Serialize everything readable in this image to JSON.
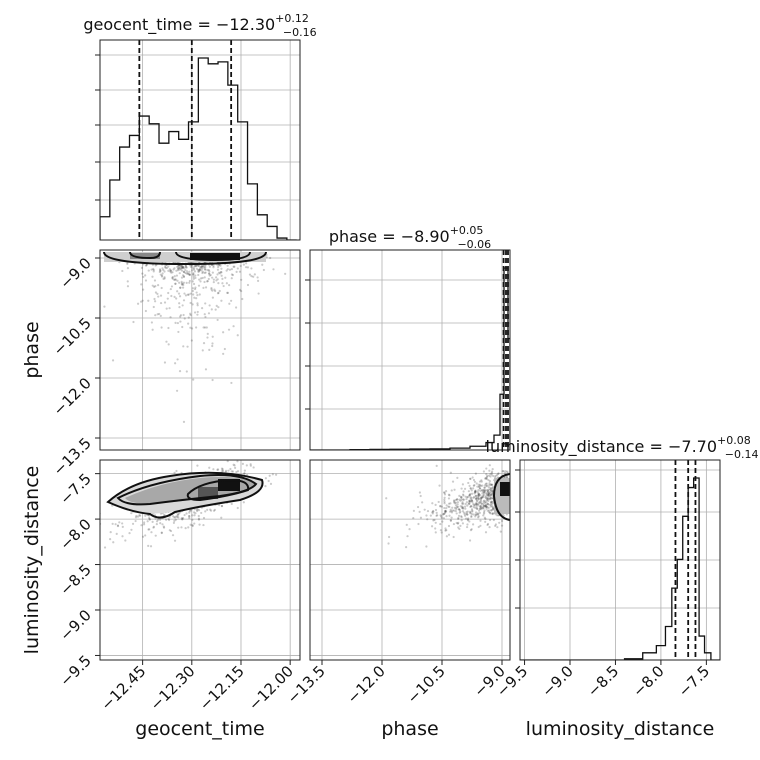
{
  "chart_data": {
    "type": "corner",
    "parameters": [
      "geocent_time",
      "phase",
      "luminosity_distance"
    ],
    "axis_labels": {
      "geocent_time": "geocent_time",
      "phase": "phase",
      "luminosity_distance": "luminosity_distance"
    },
    "ranges": {
      "geocent_time": [
        -12.58,
        -11.97
      ],
      "phase": [
        -13.8,
        -8.8
      ],
      "luminosity_distance": [
        -9.55,
        -7.35
      ]
    },
    "ticks": {
      "geocent_time": [
        "−12.45",
        "−12.30",
        "−12.15",
        "−12.00"
      ],
      "geocent_time_values": [
        -12.45,
        -12.3,
        -12.15,
        -12.0
      ],
      "phase": [
        "−13.5",
        "−12.0",
        "−10.5",
        "−9.0"
      ],
      "phase_values": [
        -13.5,
        -12.0,
        -10.5,
        -9.0
      ],
      "luminosity_distance": [
        "−9.5",
        "−9.0",
        "−8.5",
        "−8.0",
        "−7.5"
      ],
      "luminosity_distance_values": [
        -9.5,
        -9.0,
        -8.5,
        -8.0,
        -7.5
      ]
    },
    "titles": {
      "geocent_time": {
        "main": "geocent_time = −12.30",
        "sup": "+0.12",
        "sub": "−0.16"
      },
      "phase": {
        "main": "phase = −8.90",
        "sup": "+0.05",
        "sub": "−0.06"
      },
      "luminosity_distance": {
        "main": "luminosity_distance = −7.70",
        "sup": "+0.08",
        "sub": "−0.14"
      }
    },
    "quantiles": {
      "geocent_time": [
        -12.46,
        -12.3,
        -12.18
      ],
      "phase": [
        -8.96,
        -8.9,
        -8.85
      ],
      "luminosity_distance": [
        -7.84,
        -7.7,
        -7.62
      ]
    },
    "histograms": {
      "geocent_time": {
        "edges": [
          -12.58,
          -12.55,
          -12.52,
          -12.49,
          -12.46,
          -12.43,
          -12.4,
          -12.37,
          -12.34,
          -12.31,
          -12.28,
          -12.25,
          -12.22,
          -12.19,
          -12.16,
          -12.13,
          -12.1,
          -12.07,
          -12.04,
          -12.01,
          -11.98
        ],
        "counts": [
          12,
          31,
          48,
          54,
          64,
          60,
          50,
          56,
          52,
          61,
          94,
          91,
          92,
          80,
          61,
          29,
          13,
          7,
          1,
          0
        ]
      },
      "phase": {
        "edges": [
          -13.8,
          -13.3,
          -12.8,
          -12.3,
          -11.8,
          -11.3,
          -10.8,
          -10.3,
          -9.8,
          -9.4,
          -9.2,
          -9.05,
          -8.95,
          -8.85,
          -8.8
        ],
        "counts": [
          0,
          0,
          0.2,
          0.3,
          0.4,
          0.5,
          0.6,
          1,
          2,
          4,
          8,
          30,
          98,
          60
        ]
      },
      "luminosity_distance": {
        "edges": [
          -9.55,
          -9.4,
          -9.2,
          -9.0,
          -8.8,
          -8.6,
          -8.4,
          -8.2,
          -8.05,
          -7.95,
          -7.88,
          -7.82,
          -7.76,
          -7.7,
          -7.64,
          -7.58,
          -7.52,
          -7.45,
          -7.35
        ],
        "counts": [
          0,
          0,
          0,
          0,
          0,
          0,
          0.5,
          3,
          6,
          14,
          30,
          42,
          60,
          72,
          76,
          10,
          3,
          0
        ]
      }
    }
  }
}
